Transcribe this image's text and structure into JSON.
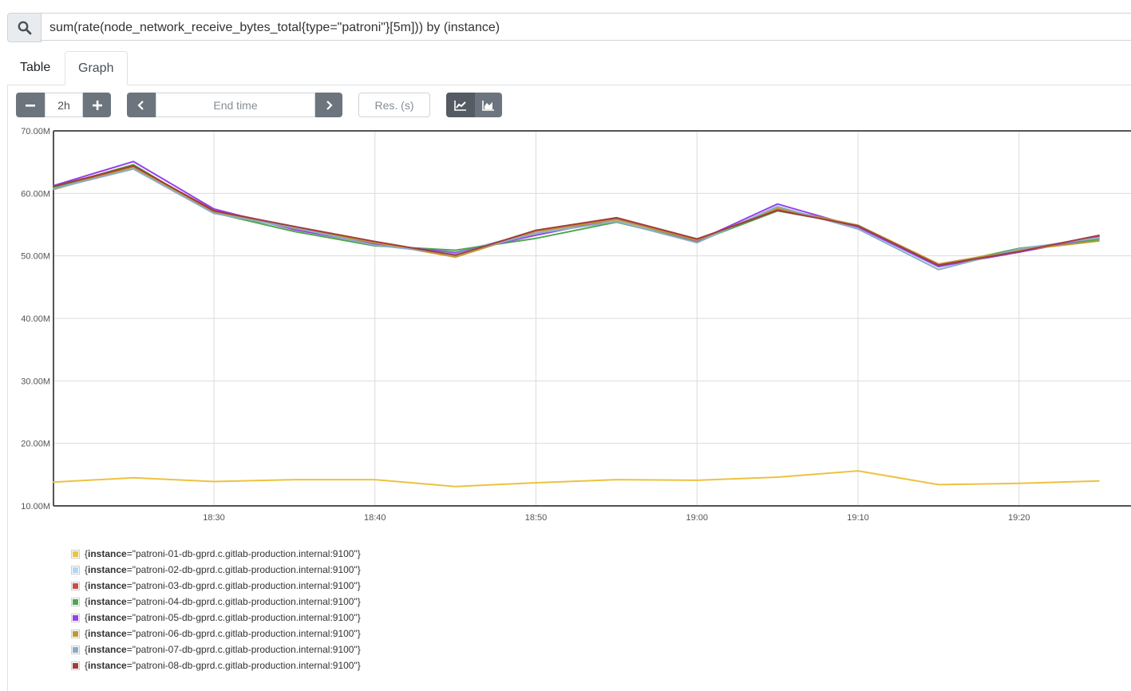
{
  "query": {
    "expression": "sum(rate(node_network_receive_bytes_total{type=\"patroni\"}[5m])) by (instance)"
  },
  "tabs": [
    {
      "label": "Table"
    },
    {
      "label": "Graph"
    }
  ],
  "controls": {
    "range_value": "2h",
    "end_time_placeholder": "End time",
    "resolution_placeholder": "Res. (s)"
  },
  "chart_data": {
    "type": "line",
    "ylim": [
      10,
      70
    ],
    "y_unit": "M",
    "y_ticks": [
      "10.00M",
      "20.00M",
      "30.00M",
      "40.00M",
      "50.00M",
      "60.00M",
      "70.00M"
    ],
    "x_ticks": [
      "18:30",
      "18:40",
      "18:50",
      "19:00",
      "19:10",
      "19:20"
    ],
    "x": [
      "18:20",
      "18:25",
      "18:30",
      "18:35",
      "18:40",
      "18:45",
      "18:50",
      "18:55",
      "19:00",
      "19:05",
      "19:10",
      "19:15",
      "19:20",
      "19:25"
    ],
    "grid": true,
    "legend_position": "bottom-left",
    "series": [
      {
        "name": "{instance=\"patroni-01-db-gprd.c.gitlab-production.internal:9100\"}",
        "color": "#edc240",
        "values": [
          13.8,
          14.5,
          13.9,
          14.2,
          14.2,
          13.1,
          13.7,
          14.2,
          14.1,
          14.6,
          15.6,
          13.4,
          13.6,
          14.0
        ]
      },
      {
        "name": "{instance=\"patroni-02-db-gprd.c.gitlab-production.internal:9100\"}",
        "color": "#afd8f8",
        "values": [
          60.8,
          64.0,
          57.0,
          54.3,
          51.8,
          50.6,
          53.8,
          55.7,
          52.2,
          57.7,
          54.5,
          48.2,
          51.0,
          52.8
        ]
      },
      {
        "name": "{instance=\"patroni-03-db-gprd.c.gitlab-production.internal:9100\"}",
        "color": "#cb4b4b",
        "values": [
          61.0,
          64.3,
          57.3,
          54.6,
          52.0,
          50.2,
          54.0,
          56.0,
          52.6,
          57.4,
          54.7,
          48.6,
          50.8,
          53.2
        ]
      },
      {
        "name": "{instance=\"patroni-04-db-gprd.c.gitlab-production.internal:9100\"}",
        "color": "#4da74d",
        "values": [
          60.9,
          64.6,
          56.9,
          53.9,
          51.6,
          50.9,
          52.8,
          55.4,
          52.3,
          57.2,
          54.9,
          48.4,
          51.2,
          52.6
        ]
      },
      {
        "name": "{instance=\"patroni-05-db-gprd.c.gitlab-production.internal:9100\"}",
        "color": "#9440ed",
        "values": [
          61.2,
          65.1,
          57.5,
          54.2,
          51.9,
          50.5,
          53.3,
          55.9,
          52.4,
          58.3,
          54.6,
          48.3,
          50.6,
          53.0
        ]
      },
      {
        "name": "{instance=\"patroni-06-db-gprd.c.gitlab-production.internal:9100\"}",
        "color": "#bd9b33",
        "values": [
          60.6,
          64.2,
          57.1,
          54.4,
          52.1,
          49.8,
          53.9,
          55.8,
          52.5,
          57.6,
          54.9,
          48.7,
          50.9,
          52.4
        ]
      },
      {
        "name": "{instance=\"patroni-07-db-gprd.c.gitlab-production.internal:9100\"}",
        "color": "#8cacc6",
        "values": [
          60.7,
          63.9,
          56.8,
          54.5,
          51.7,
          50.3,
          53.6,
          55.5,
          52.1,
          57.9,
          54.3,
          47.8,
          51.1,
          52.9
        ]
      },
      {
        "name": "{instance=\"patroni-08-db-gprd.c.gitlab-production.internal:9100\"}",
        "color": "#a23c3c",
        "values": [
          61.1,
          64.4,
          57.2,
          54.7,
          52.3,
          50.1,
          54.1,
          56.1,
          52.7,
          57.3,
          54.8,
          48.5,
          50.7,
          53.3
        ]
      }
    ]
  }
}
